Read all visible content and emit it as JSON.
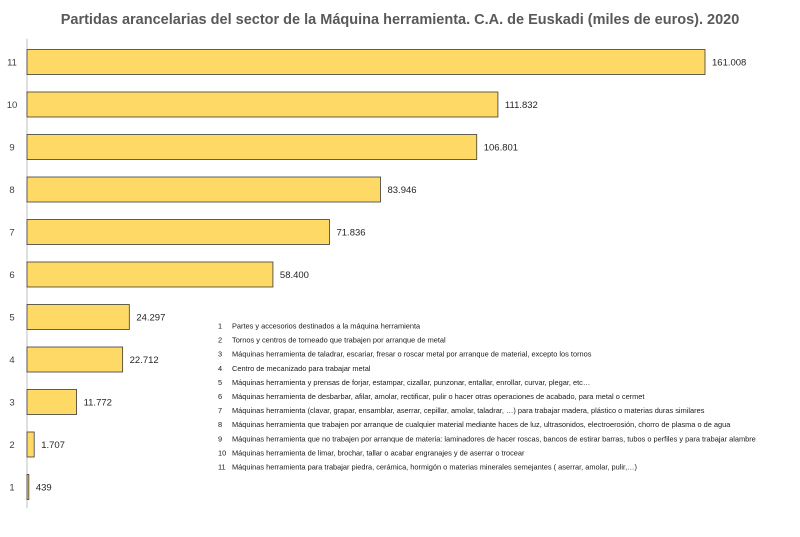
{
  "chart_data": {
    "type": "bar",
    "orientation": "horizontal",
    "title": "Partidas arancelarias del sector de la Máquina herramienta. C.A. de Euskadi (miles de euros). 2020",
    "xlabel": "",
    "ylabel": "",
    "xlim": [
      0,
      170000
    ],
    "grid": false,
    "bar_color": "#FFD966",
    "categories": [
      "1",
      "2",
      "3",
      "4",
      "5",
      "6",
      "7",
      "8",
      "9",
      "10",
      "11"
    ],
    "values": [
      439,
      1707,
      11772,
      22712,
      24297,
      58400,
      71836,
      83946,
      106801,
      111832,
      161008
    ],
    "value_labels": [
      "439",
      "1.707",
      "11.772",
      "22.712",
      "24.297",
      "58.400",
      "71.836",
      "83.946",
      "106.801",
      "111.832",
      "161.008"
    ],
    "legend": [
      {
        "num": "1",
        "text": "Partes y accesorios destinados a la máquina herramienta"
      },
      {
        "num": "2",
        "text": "Tornos y centros de torneado que trabajen por arranque de metal"
      },
      {
        "num": "3",
        "text": "Máquinas herramienta de taladrar, escariar, fresar o roscar metal por arranque de material, excepto los tornos"
      },
      {
        "num": "4",
        "text": "Centro de mecanizado para trabajar metal"
      },
      {
        "num": "5",
        "text": "Máquinas herramienta y prensas de forjar, estampar, cizallar, punzonar, entallar, enrollar, curvar, plegar, etc…"
      },
      {
        "num": "6",
        "text": "Máquinas herramienta de desbarbar, afilar, amolar, rectificar, pulir o hacer otras operaciones de acabado, para metal o cermet"
      },
      {
        "num": "7",
        "text": "Máquinas herramienta (clavar, grapar, ensamblar, aserrar, cepillar, amolar, taladrar, …) para trabajar madera, plástico o materias duras similares"
      },
      {
        "num": "8",
        "text": "Máquinas herramienta que trabajen por arranque de cualquier material mediante haces de luz, ultrasonidos, electroerosión, chorro de plasma o de agua"
      },
      {
        "num": "9",
        "text": "Máquinas herramienta que no trabajen por arranque de materia: laminadores de hacer roscas, bancos de estirar barras, tubos o perfiles y para trabajar alambre"
      },
      {
        "num": "10",
        "text": "Máquinas herramienta de limar, brochar, tallar o acabar engranajes y de aserrar o trocear"
      },
      {
        "num": "11",
        "text": "Máquinas herramienta para trabajar piedra, cerámica, hormigón o materias minerales semejantes ( aserrar, amolar, pulir,…)"
      }
    ]
  }
}
